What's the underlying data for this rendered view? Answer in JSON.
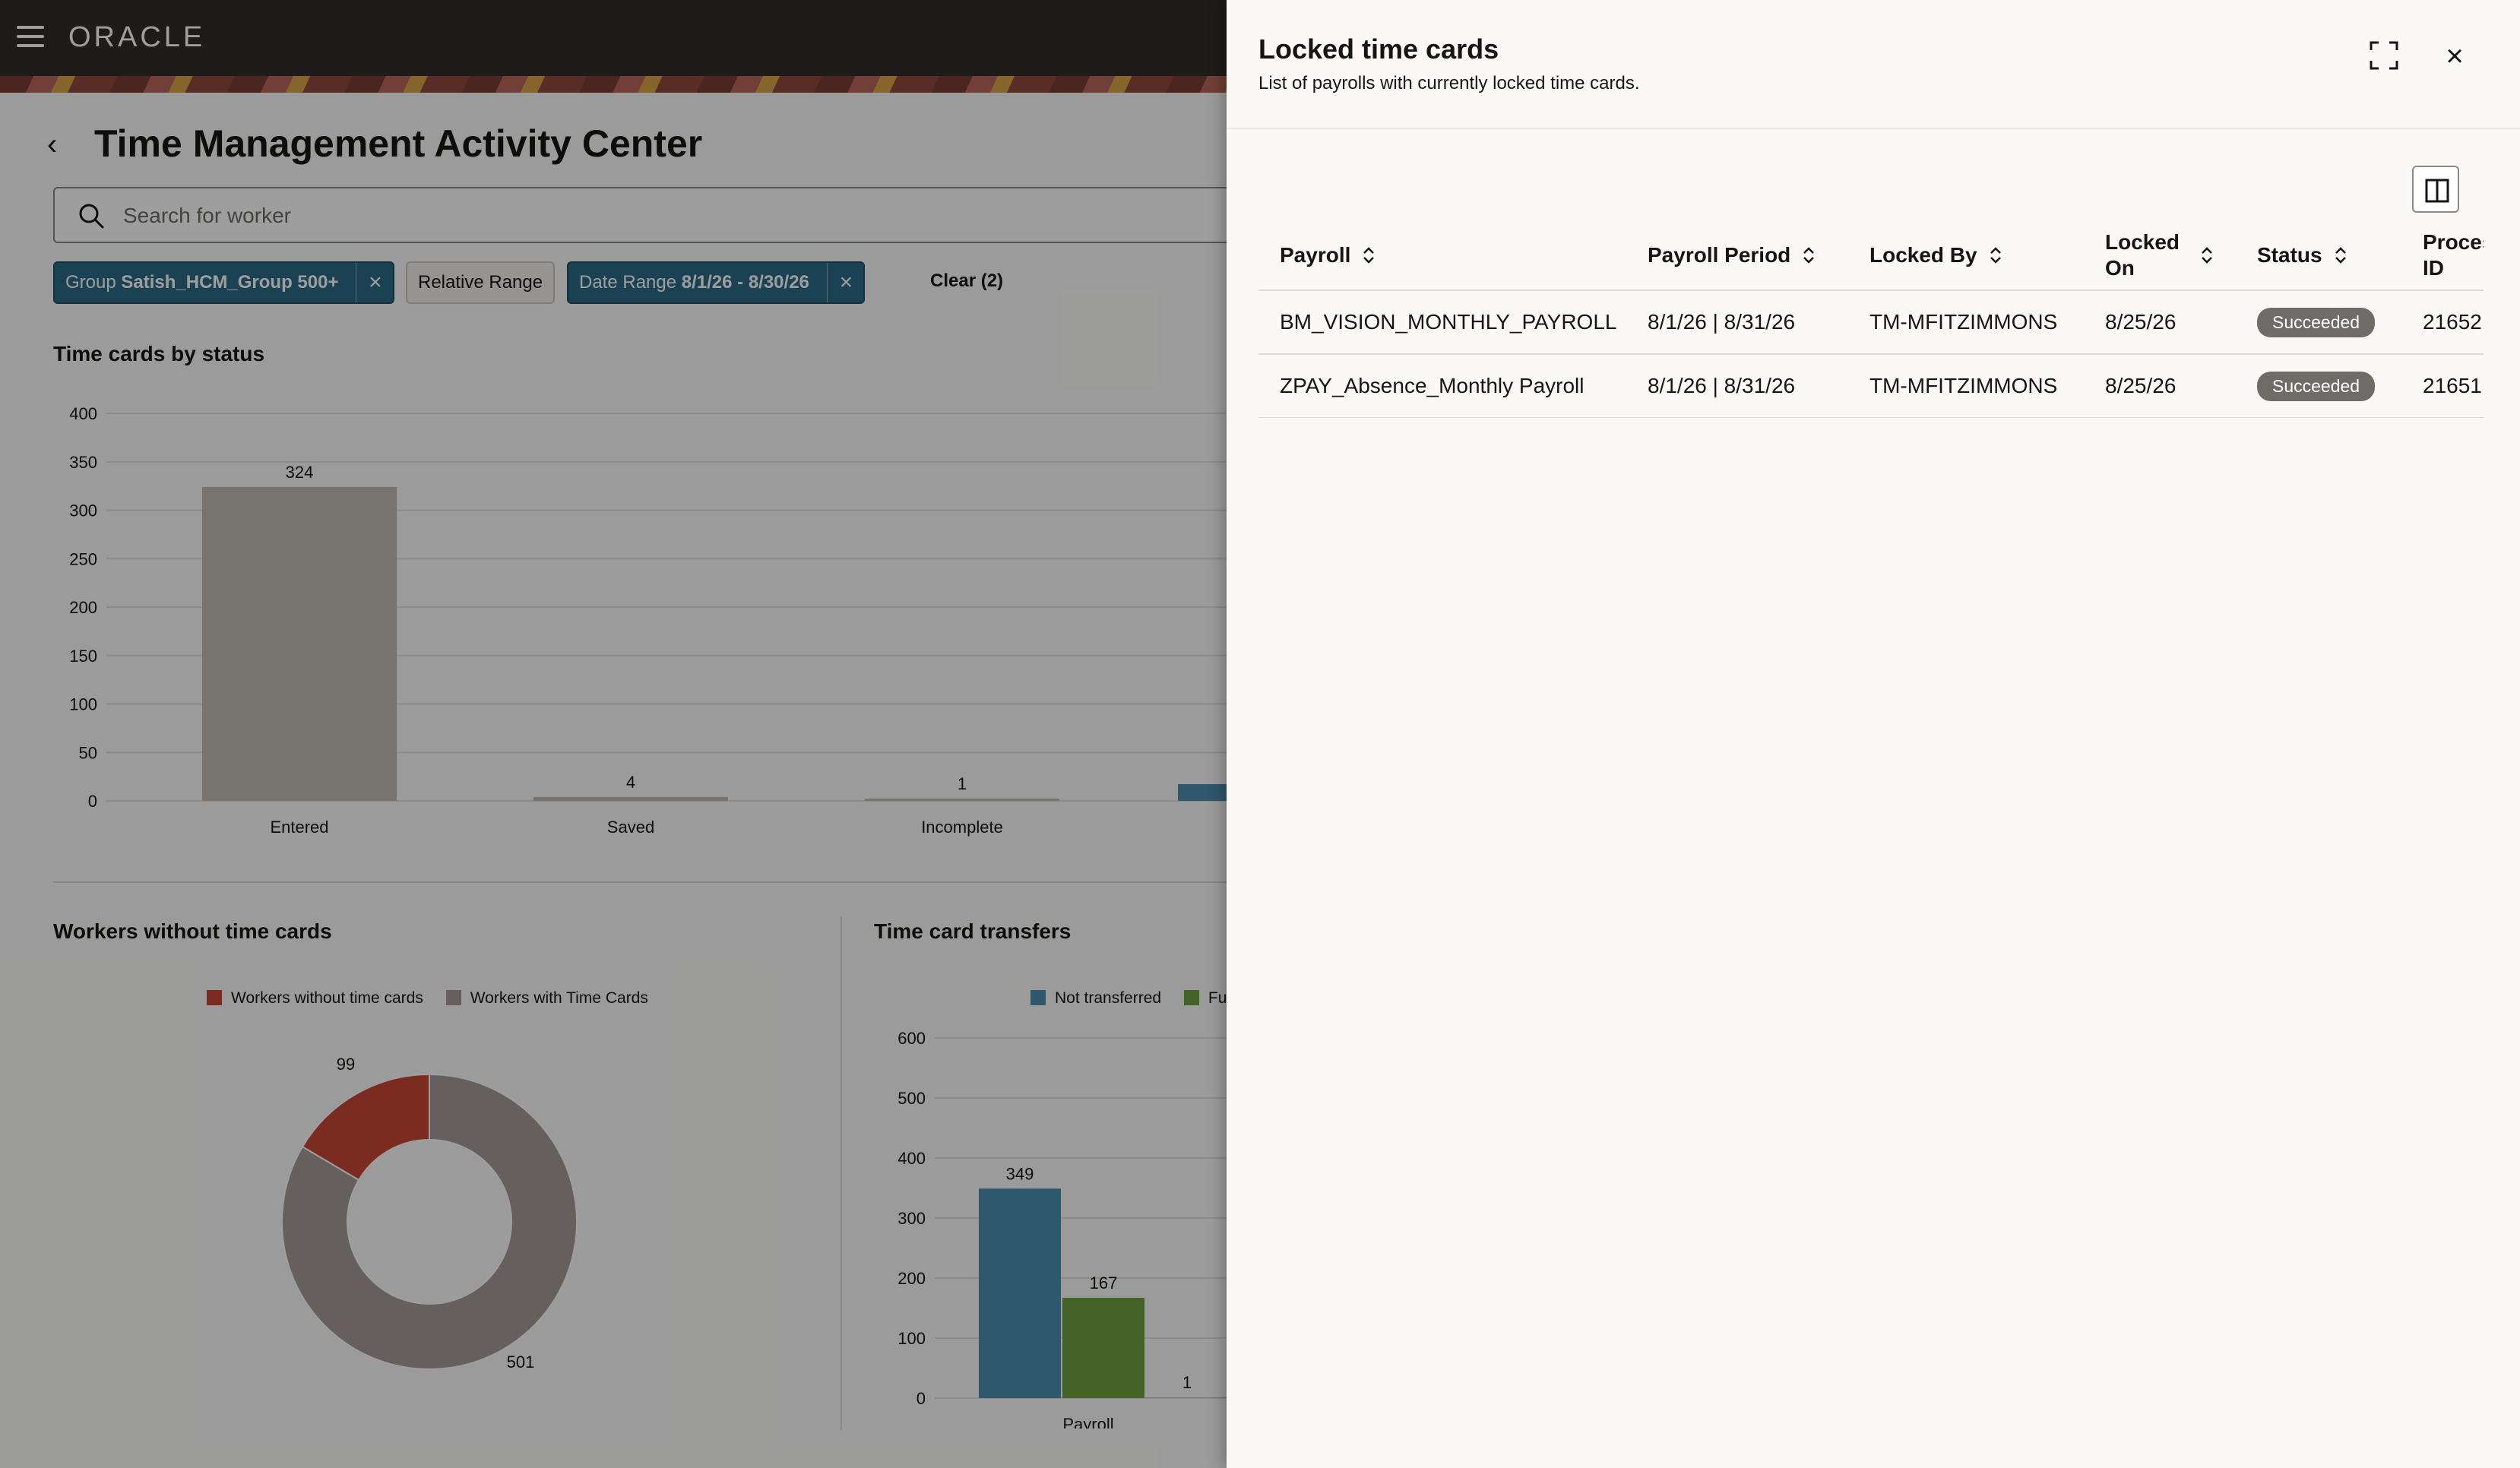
{
  "app": {
    "brand": "ORACLE",
    "page_title": "Time Management Activity Center"
  },
  "search": {
    "placeholder": "Search for worker"
  },
  "filters": {
    "chips": [
      {
        "prefix": "Group",
        "value": "Satish_HCM_Group 500+",
        "active": true
      },
      {
        "prefix": "Relative Range",
        "value": "",
        "active": false
      },
      {
        "prefix": "Date Range",
        "value": "8/1/26 - 8/30/26",
        "active": true
      }
    ],
    "clear_label": "Clear (2)"
  },
  "sections": {
    "time_cards_by_status": "Time cards by status",
    "workers_without_time_cards": "Workers without time cards",
    "time_card_transfers": "Time card transfers"
  },
  "chart_data": [
    {
      "type": "bar",
      "title": "Time cards by status",
      "categories": [
        "Entered",
        "Saved",
        "Incomplete"
      ],
      "values": [
        324,
        4,
        1
      ],
      "ylim": [
        0,
        400
      ],
      "yticks": [
        0,
        50,
        100,
        150,
        200,
        250,
        300,
        350,
        400
      ],
      "color": "#c0bab4"
    },
    {
      "type": "pie",
      "title": "Workers without time cards",
      "series": [
        {
          "name": "Workers without time cards",
          "value": 99,
          "color": "#c74634"
        },
        {
          "name": "Workers with Time Cards",
          "value": 501,
          "color": "#a39c96"
        }
      ],
      "legend": "top"
    },
    {
      "type": "bar",
      "title": "Time card transfers",
      "categories": [
        "Payroll"
      ],
      "series": [
        {
          "name": "Not transferred",
          "values": [
            349
          ],
          "color": "#4d8fb0"
        },
        {
          "name": "Fu",
          "values": [
            167
          ],
          "color": "#6d9f3c"
        },
        {
          "name": "",
          "values": [
            1
          ],
          "color": "#c0bab4"
        }
      ],
      "ylim": [
        0,
        600
      ],
      "yticks": [
        0,
        100,
        200,
        300,
        400,
        500,
        600
      ]
    }
  ],
  "drawer": {
    "title": "Locked time cards",
    "subtitle": "List of payrolls with currently locked time cards.",
    "columns": [
      "Payroll",
      "Payroll Period",
      "Locked By",
      "Locked On",
      "Status",
      "Process ID"
    ],
    "rows": [
      {
        "payroll": "BM_VISION_MONTHLY_PAYROLL",
        "period": "8/1/26 | 8/31/26",
        "locked_by": "TM-MFITZIMMONS",
        "locked_on": "8/25/26",
        "status": "Succeeded",
        "process_id": "21652"
      },
      {
        "payroll": "ZPAY_Absence_Monthly Payroll",
        "period": "8/1/26 | 8/31/26",
        "locked_by": "TM-MFITZIMMONS",
        "locked_on": "8/25/26",
        "status": "Succeeded",
        "process_id": "21651"
      }
    ]
  },
  "colors": {
    "topbar": "#312d2a",
    "accent": "#2a6b86",
    "status_badge": "#6f6b67"
  }
}
